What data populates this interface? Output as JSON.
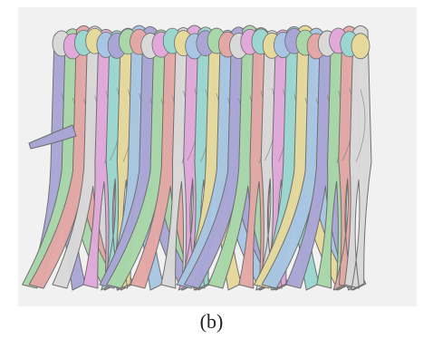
{
  "figure": {
    "caption": "(b)",
    "panel_background": "#f1f1f1",
    "silhouette_stroke": "#6d6d6d",
    "palette": [
      "#a9a6d6",
      "#a9d7a9",
      "#e3a8a6",
      "#d9d9d9",
      "#e0a9da",
      "#9bd7cf",
      "#e6d99c",
      "#a8c6e4"
    ],
    "frame_count": 28
  }
}
